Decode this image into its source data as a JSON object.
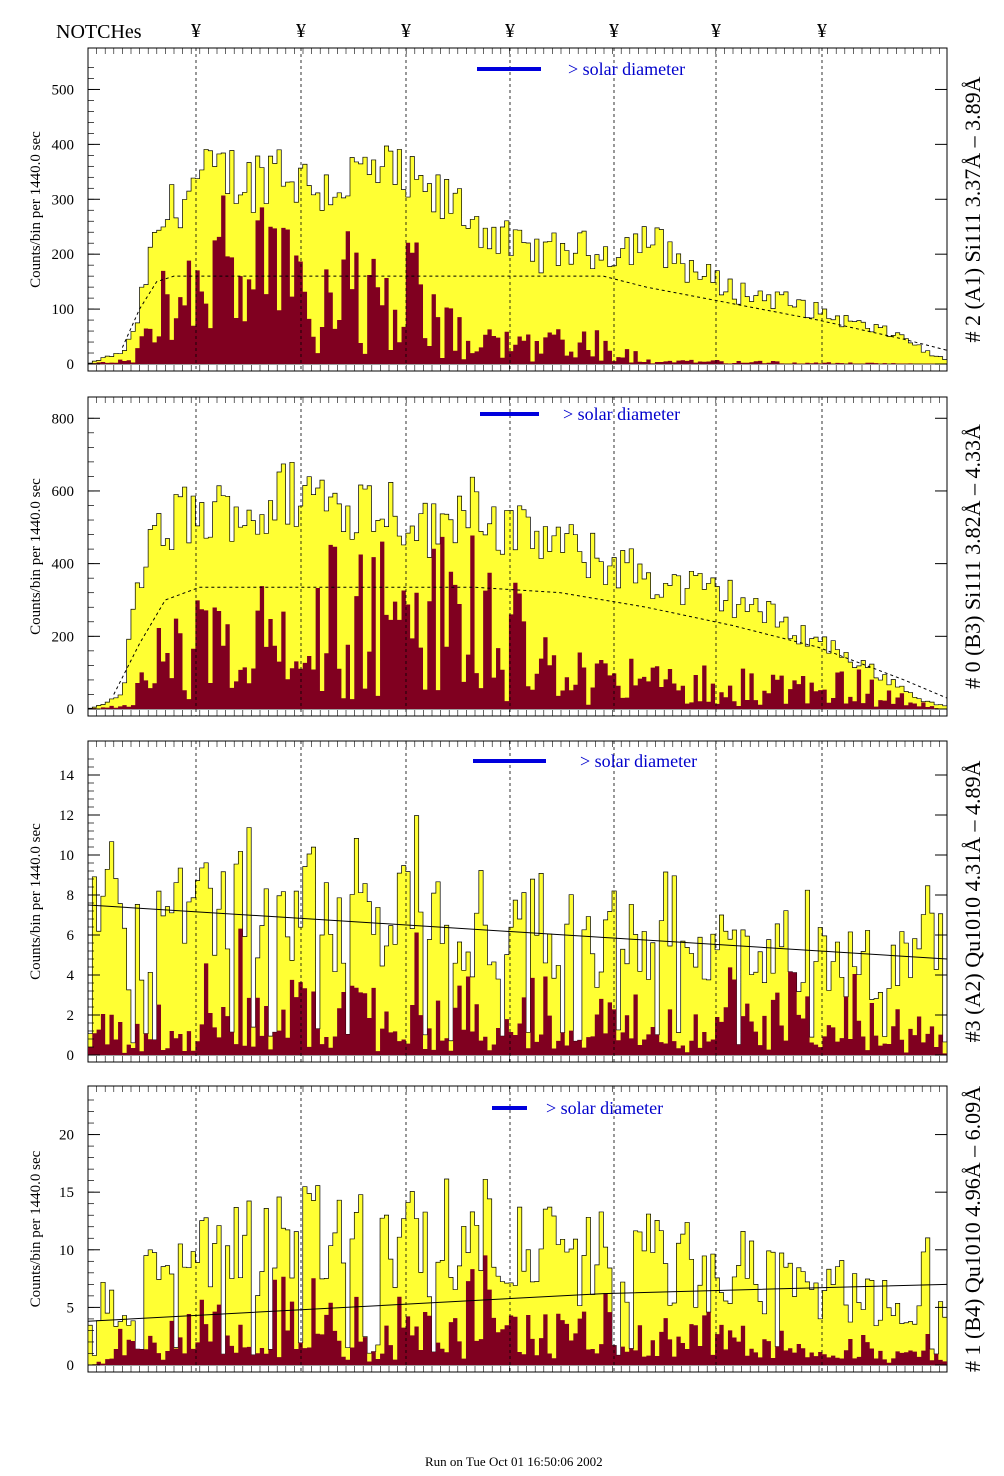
{
  "header": {
    "notches_label": "NOTCHes",
    "notch_marker": "¥"
  },
  "footer": {
    "run_text": "Run on Tue Oct 01 16:50:06 2002"
  },
  "colors": {
    "fill": "#ffff33",
    "dark": "#800020",
    "blue": "#0000dd"
  },
  "chart_data": [
    {
      "type": "area",
      "ylabel": "Counts/bin per   1440.0 sec",
      "right_label": "# 2 (A1) Si111  3.37Å – 3.89Å",
      "solar_text": "> solar diameter",
      "yticks": [
        0,
        100,
        200,
        300,
        400,
        500
      ],
      "ylim": [
        0,
        550
      ],
      "upper_envelope": [
        [
          0,
          0
        ],
        [
          4,
          12
        ],
        [
          8,
          20
        ],
        [
          11,
          60
        ],
        [
          14,
          180
        ],
        [
          18,
          270
        ],
        [
          25,
          330
        ],
        [
          32,
          350
        ],
        [
          38,
          330
        ],
        [
          44,
          370
        ],
        [
          50,
          330
        ],
        [
          56,
          320
        ],
        [
          62,
          340
        ],
        [
          68,
          350
        ],
        [
          74,
          330
        ],
        [
          80,
          300
        ],
        [
          86,
          290
        ],
        [
          90,
          260
        ],
        [
          96,
          230
        ],
        [
          100,
          210
        ],
        [
          106,
          200
        ],
        [
          112,
          210
        ],
        [
          118,
          205
        ],
        [
          124,
          210
        ],
        [
          130,
          230
        ],
        [
          136,
          200
        ],
        [
          140,
          175
        ],
        [
          146,
          150
        ],
        [
          152,
          130
        ],
        [
          160,
          120
        ],
        [
          170,
          95
        ],
        [
          180,
          70
        ],
        [
          190,
          50
        ],
        [
          196,
          18
        ],
        [
          200,
          8
        ]
      ],
      "lower_envelope": [
        [
          0,
          0
        ],
        [
          10,
          8
        ],
        [
          14,
          80
        ],
        [
          20,
          170
        ],
        [
          28,
          190
        ],
        [
          36,
          170
        ],
        [
          44,
          205
        ],
        [
          50,
          180
        ],
        [
          56,
          130
        ],
        [
          62,
          200
        ],
        [
          68,
          150
        ],
        [
          72,
          110
        ],
        [
          76,
          150
        ],
        [
          80,
          90
        ],
        [
          86,
          60
        ],
        [
          92,
          45
        ],
        [
          100,
          40
        ],
        [
          110,
          45
        ],
        [
          120,
          40
        ],
        [
          126,
          20
        ],
        [
          130,
          10
        ],
        [
          140,
          5
        ],
        [
          200,
          0
        ]
      ],
      "smooth_fit": [
        [
          8,
          30
        ],
        [
          12,
          100
        ],
        [
          16,
          150
        ],
        [
          20,
          160
        ],
        [
          120,
          160
        ],
        [
          130,
          140
        ],
        [
          150,
          110
        ],
        [
          170,
          80
        ],
        [
          190,
          45
        ],
        [
          200,
          25
        ]
      ]
    },
    {
      "type": "area",
      "ylabel": "Counts/bin per   1440.0 sec",
      "right_label": "# 0 (B3) Si111  3.82Å – 4.33Å",
      "solar_text": "> solar diameter",
      "yticks": [
        0,
        200,
        400,
        600,
        800
      ],
      "ylim": [
        0,
        820
      ],
      "upper_envelope": [
        [
          0,
          0
        ],
        [
          4,
          15
        ],
        [
          8,
          40
        ],
        [
          12,
          380
        ],
        [
          16,
          460
        ],
        [
          22,
          540
        ],
        [
          28,
          520
        ],
        [
          34,
          560
        ],
        [
          40,
          530
        ],
        [
          46,
          590
        ],
        [
          52,
          600
        ],
        [
          58,
          560
        ],
        [
          64,
          570
        ],
        [
          70,
          560
        ],
        [
          76,
          520
        ],
        [
          82,
          480
        ],
        [
          88,
          600
        ],
        [
          92,
          560
        ],
        [
          98,
          480
        ],
        [
          104,
          480
        ],
        [
          110,
          450
        ],
        [
          116,
          420
        ],
        [
          122,
          400
        ],
        [
          128,
          380
        ],
        [
          134,
          340
        ],
        [
          140,
          330
        ],
        [
          146,
          320
        ],
        [
          152,
          300
        ],
        [
          158,
          260
        ],
        [
          164,
          220
        ],
        [
          170,
          190
        ],
        [
          176,
          150
        ],
        [
          182,
          110
        ],
        [
          188,
          70
        ],
        [
          194,
          25
        ],
        [
          200,
          6
        ]
      ],
      "lower_envelope": [
        [
          0,
          0
        ],
        [
          10,
          10
        ],
        [
          14,
          150
        ],
        [
          20,
          180
        ],
        [
          26,
          250
        ],
        [
          32,
          160
        ],
        [
          38,
          290
        ],
        [
          44,
          240
        ],
        [
          50,
          300
        ],
        [
          56,
          350
        ],
        [
          62,
          280
        ],
        [
          68,
          300
        ],
        [
          74,
          260
        ],
        [
          80,
          320
        ],
        [
          84,
          270
        ],
        [
          90,
          400
        ],
        [
          94,
          260
        ],
        [
          100,
          200
        ],
        [
          106,
          120
        ],
        [
          112,
          150
        ],
        [
          118,
          100
        ],
        [
          124,
          110
        ],
        [
          130,
          70
        ],
        [
          140,
          80
        ],
        [
          150,
          70
        ],
        [
          160,
          60
        ],
        [
          170,
          60
        ],
        [
          180,
          70
        ],
        [
          190,
          30
        ],
        [
          200,
          0
        ]
      ],
      "smooth_fit": [
        [
          6,
          40
        ],
        [
          12,
          180
        ],
        [
          18,
          300
        ],
        [
          26,
          335
        ],
        [
          90,
          335
        ],
        [
          110,
          320
        ],
        [
          130,
          280
        ],
        [
          150,
          230
        ],
        [
          170,
          170
        ],
        [
          190,
          80
        ],
        [
          200,
          30
        ]
      ]
    },
    {
      "type": "area",
      "ylabel": "Counts/bin per   1440.0 sec",
      "right_label": "#3 (A2) Qu1010  4.31Å – 4.89Å",
      "solar_text": "> solar diameter",
      "yticks": [
        0,
        2,
        4,
        6,
        8,
        10,
        12,
        14
      ],
      "ylim": [
        0,
        15
      ],
      "upper_envelope": [
        [
          0,
          6
        ],
        [
          4,
          10
        ],
        [
          8,
          5
        ],
        [
          12,
          6
        ],
        [
          16,
          7
        ],
        [
          20,
          8
        ],
        [
          24,
          6
        ],
        [
          28,
          7
        ],
        [
          32,
          8
        ],
        [
          36,
          9
        ],
        [
          40,
          7
        ],
        [
          44,
          6
        ],
        [
          48,
          7
        ],
        [
          52,
          8
        ],
        [
          56,
          6
        ],
        [
          60,
          7
        ],
        [
          64,
          8
        ],
        [
          68,
          6
        ],
        [
          72,
          7
        ],
        [
          76,
          9
        ],
        [
          80,
          6
        ],
        [
          84,
          7
        ],
        [
          88,
          6
        ],
        [
          92,
          7
        ],
        [
          96,
          5
        ],
        [
          100,
          6
        ],
        [
          104,
          7
        ],
        [
          108,
          6
        ],
        [
          112,
          7
        ],
        [
          116,
          5
        ],
        [
          120,
          6
        ],
        [
          124,
          6
        ],
        [
          128,
          5
        ],
        [
          132,
          6
        ],
        [
          136,
          7
        ],
        [
          140,
          5
        ],
        [
          144,
          6
        ],
        [
          148,
          5
        ],
        [
          152,
          6
        ],
        [
          156,
          5
        ],
        [
          160,
          6
        ],
        [
          164,
          5
        ],
        [
          168,
          6
        ],
        [
          172,
          5
        ],
        [
          176,
          4
        ],
        [
          180,
          5
        ],
        [
          184,
          4
        ],
        [
          188,
          5
        ],
        [
          192,
          4
        ],
        [
          196,
          7
        ],
        [
          200,
          5
        ]
      ],
      "lower_envelope": [
        [
          0,
          0
        ],
        [
          4,
          2
        ],
        [
          8,
          1
        ],
        [
          12,
          1
        ],
        [
          16,
          3
        ],
        [
          20,
          2
        ],
        [
          24,
          1
        ],
        [
          28,
          3
        ],
        [
          32,
          2
        ],
        [
          36,
          4
        ],
        [
          40,
          2
        ],
        [
          44,
          1
        ],
        [
          48,
          3
        ],
        [
          52,
          2
        ],
        [
          56,
          1
        ],
        [
          60,
          2
        ],
        [
          64,
          3
        ],
        [
          68,
          2
        ],
        [
          72,
          1
        ],
        [
          76,
          4
        ],
        [
          80,
          2
        ],
        [
          84,
          1
        ],
        [
          88,
          3
        ],
        [
          92,
          2
        ],
        [
          96,
          1
        ],
        [
          100,
          2
        ],
        [
          104,
          3
        ],
        [
          108,
          2
        ],
        [
          112,
          1
        ],
        [
          116,
          3
        ],
        [
          120,
          2
        ],
        [
          124,
          1
        ],
        [
          128,
          2
        ],
        [
          132,
          3
        ],
        [
          136,
          2
        ],
        [
          140,
          1
        ],
        [
          144,
          2
        ],
        [
          148,
          3
        ],
        [
          152,
          2
        ],
        [
          156,
          1
        ],
        [
          160,
          2
        ],
        [
          164,
          3
        ],
        [
          168,
          2
        ],
        [
          172,
          1
        ],
        [
          176,
          2
        ],
        [
          180,
          3
        ],
        [
          184,
          1
        ],
        [
          188,
          2
        ],
        [
          192,
          1
        ],
        [
          196,
          2
        ],
        [
          200,
          0
        ]
      ],
      "smooth_fit": [
        [
          0,
          7.5
        ],
        [
          200,
          4.8
        ]
      ]
    },
    {
      "type": "area",
      "ylabel": "Counts/bin per   1440.0 sec",
      "right_label": "# 1 (B4) Qu1010 4.96Å – 6.09Å",
      "solar_text": "> solar diameter",
      "yticks": [
        0,
        5,
        10,
        15,
        20
      ],
      "ylim": [
        0,
        23
      ],
      "upper_envelope": [
        [
          0,
          3
        ],
        [
          4,
          6
        ],
        [
          8,
          4
        ],
        [
          12,
          7
        ],
        [
          16,
          9
        ],
        [
          20,
          10
        ],
        [
          24,
          9
        ],
        [
          28,
          11
        ],
        [
          32,
          10
        ],
        [
          36,
          12
        ],
        [
          40,
          9
        ],
        [
          44,
          13
        ],
        [
          48,
          11
        ],
        [
          52,
          12
        ],
        [
          56,
          10
        ],
        [
          60,
          11
        ],
        [
          64,
          12
        ],
        [
          68,
          9
        ],
        [
          72,
          10
        ],
        [
          76,
          11
        ],
        [
          80,
          9
        ],
        [
          84,
          12
        ],
        [
          88,
          10
        ],
        [
          92,
          13
        ],
        [
          96,
          10
        ],
        [
          100,
          11
        ],
        [
          104,
          9
        ],
        [
          108,
          10
        ],
        [
          112,
          8
        ],
        [
          116,
          9
        ],
        [
          120,
          10
        ],
        [
          124,
          8
        ],
        [
          128,
          9
        ],
        [
          132,
          10
        ],
        [
          136,
          8
        ],
        [
          140,
          9
        ],
        [
          144,
          7
        ],
        [
          148,
          8
        ],
        [
          152,
          9
        ],
        [
          156,
          7
        ],
        [
          160,
          8
        ],
        [
          164,
          7
        ],
        [
          168,
          8
        ],
        [
          172,
          6
        ],
        [
          176,
          7
        ],
        [
          180,
          5
        ],
        [
          184,
          6
        ],
        [
          188,
          4
        ],
        [
          192,
          5
        ],
        [
          196,
          9
        ],
        [
          200,
          3
        ]
      ],
      "lower_envelope": [
        [
          0,
          0
        ],
        [
          4,
          1
        ],
        [
          8,
          2
        ],
        [
          12,
          3
        ],
        [
          16,
          2
        ],
        [
          20,
          4
        ],
        [
          24,
          3
        ],
        [
          28,
          5
        ],
        [
          32,
          2
        ],
        [
          36,
          4
        ],
        [
          40,
          3
        ],
        [
          44,
          6
        ],
        [
          48,
          3
        ],
        [
          52,
          5
        ],
        [
          56,
          4
        ],
        [
          60,
          3
        ],
        [
          64,
          5
        ],
        [
          68,
          2
        ],
        [
          72,
          4
        ],
        [
          76,
          3
        ],
        [
          80,
          5
        ],
        [
          84,
          2
        ],
        [
          88,
          4
        ],
        [
          92,
          8
        ],
        [
          96,
          3
        ],
        [
          100,
          4
        ],
        [
          104,
          2
        ],
        [
          108,
          3
        ],
        [
          112,
          2
        ],
        [
          116,
          3
        ],
        [
          120,
          4
        ],
        [
          124,
          2
        ],
        [
          128,
          3
        ],
        [
          132,
          2
        ],
        [
          136,
          3
        ],
        [
          140,
          2
        ],
        [
          144,
          3
        ],
        [
          148,
          2
        ],
        [
          152,
          3
        ],
        [
          156,
          1
        ],
        [
          160,
          2
        ],
        [
          164,
          3
        ],
        [
          168,
          1
        ],
        [
          172,
          2
        ],
        [
          176,
          1
        ],
        [
          180,
          2
        ],
        [
          184,
          1
        ],
        [
          188,
          1
        ],
        [
          192,
          1
        ],
        [
          196,
          2
        ],
        [
          200,
          0
        ]
      ],
      "smooth_fit": [
        [
          0,
          3.8
        ],
        [
          60,
          5
        ],
        [
          120,
          6.2
        ],
        [
          200,
          7
        ]
      ]
    }
  ]
}
